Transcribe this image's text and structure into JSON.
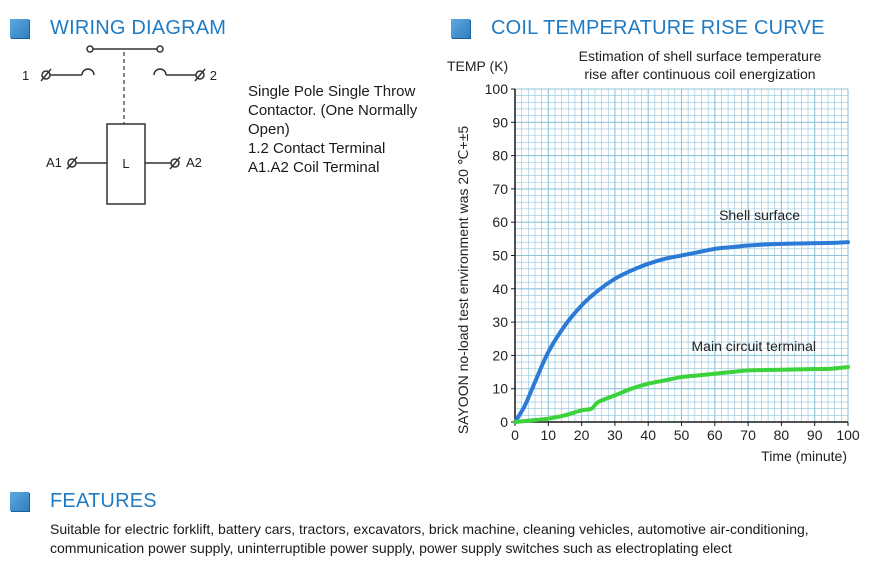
{
  "wiring": {
    "title": "WIRING DIAGRAM",
    "terminal_1": "1",
    "terminal_2": "2",
    "terminal_a1": "A1",
    "terminal_a2": "A2",
    "coil_label": "L",
    "desc_line1": "Single Pole Single Throw",
    "desc_line2": "Contactor. (One Normally",
    "desc_line3": "Open)",
    "desc_line4": "1.2 Contact Terminal",
    "desc_line5": "A1.A2 Coil Terminal"
  },
  "coil_section": {
    "title": "COIL TEMPERATURE RISE CURVE"
  },
  "chart_data": {
    "type": "line",
    "title_line1": "Estimation of shell surface temperature",
    "title_line2": "rise after continuous coil energization",
    "ylabel_top": "TEMP (K)",
    "ylabel_side": "SAYOON no-load test environment was 20 ℃+±5",
    "xlabel": "Time (minute)",
    "x_ticks": [
      0,
      10,
      20,
      30,
      40,
      50,
      60,
      70,
      80,
      90,
      100
    ],
    "y_ticks": [
      0,
      10,
      20,
      30,
      40,
      50,
      60,
      70,
      80,
      90,
      100
    ],
    "xlim": [
      0,
      100
    ],
    "ylim": [
      0,
      100
    ],
    "grid": true,
    "colors": {
      "grid": "#8fc3da",
      "axis": "#1a1a1a"
    },
    "series": [
      {
        "name": "Shell surface",
        "color": "#2b7bd6",
        "x": [
          0,
          3,
          6,
          10,
          15,
          20,
          25,
          30,
          35,
          40,
          45,
          50,
          55,
          60,
          65,
          70,
          75,
          80,
          85,
          90,
          95,
          100
        ],
        "y": [
          0,
          5,
          12,
          21,
          29,
          35,
          39.5,
          43,
          45.5,
          47.5,
          49,
          50,
          51,
          52,
          52.5,
          53,
          53.3,
          53.5,
          53.6,
          53.7,
          53.8,
          54
        ]
      },
      {
        "name": "Main circuit terminal",
        "color": "#3bd23b",
        "x": [
          0,
          5,
          10,
          15,
          20,
          23,
          25,
          30,
          35,
          40,
          45,
          50,
          55,
          60,
          65,
          70,
          75,
          80,
          85,
          90,
          95,
          100
        ],
        "y": [
          0,
          0.5,
          1,
          2,
          3.5,
          4,
          6,
          8,
          10,
          11.5,
          12.5,
          13.5,
          14,
          14.5,
          15,
          15.5,
          15.6,
          15.7,
          15.8,
          15.9,
          16,
          16.5
        ]
      }
    ]
  },
  "features": {
    "title": "FEATURES",
    "line1": "Suitable for electric forklift, battery cars, tractors, excavators, brick machine, cleaning vehicles, automotive air-conditioning,",
    "line2": "communication power supply, uninterruptible power supply, power supply switches such as electroplating elect"
  }
}
